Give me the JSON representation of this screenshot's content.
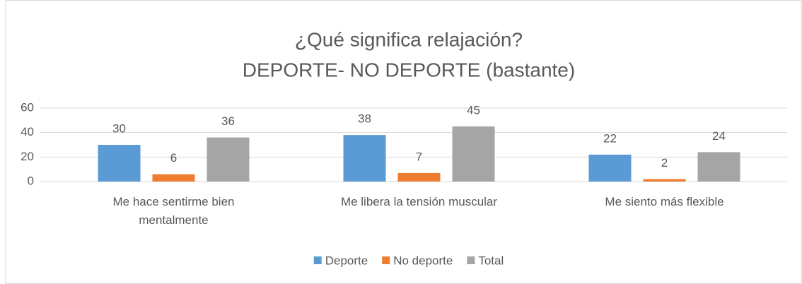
{
  "chart_data": {
    "type": "bar",
    "title": [
      "¿Qué significa relajación?",
      "DEPORTE- NO DEPORTE (bastante)"
    ],
    "categories": [
      "Me hace sentirme bien mentalmente",
      "Me libera la tensión muscular",
      "Me siento más flexible"
    ],
    "series": [
      {
        "name": "Deporte",
        "color": "#5b9bd5",
        "values": [
          30,
          38,
          22
        ]
      },
      {
        "name": "No deporte",
        "color": "#ed7d31",
        "values": [
          6,
          7,
          2
        ]
      },
      {
        "name": "Total",
        "color": "#a5a5a5",
        "values": [
          36,
          45,
          24
        ]
      }
    ],
    "ylim": [
      0,
      60
    ],
    "yticks": [
      0,
      20,
      40,
      60
    ],
    "grid": true,
    "legend": "bottom"
  }
}
